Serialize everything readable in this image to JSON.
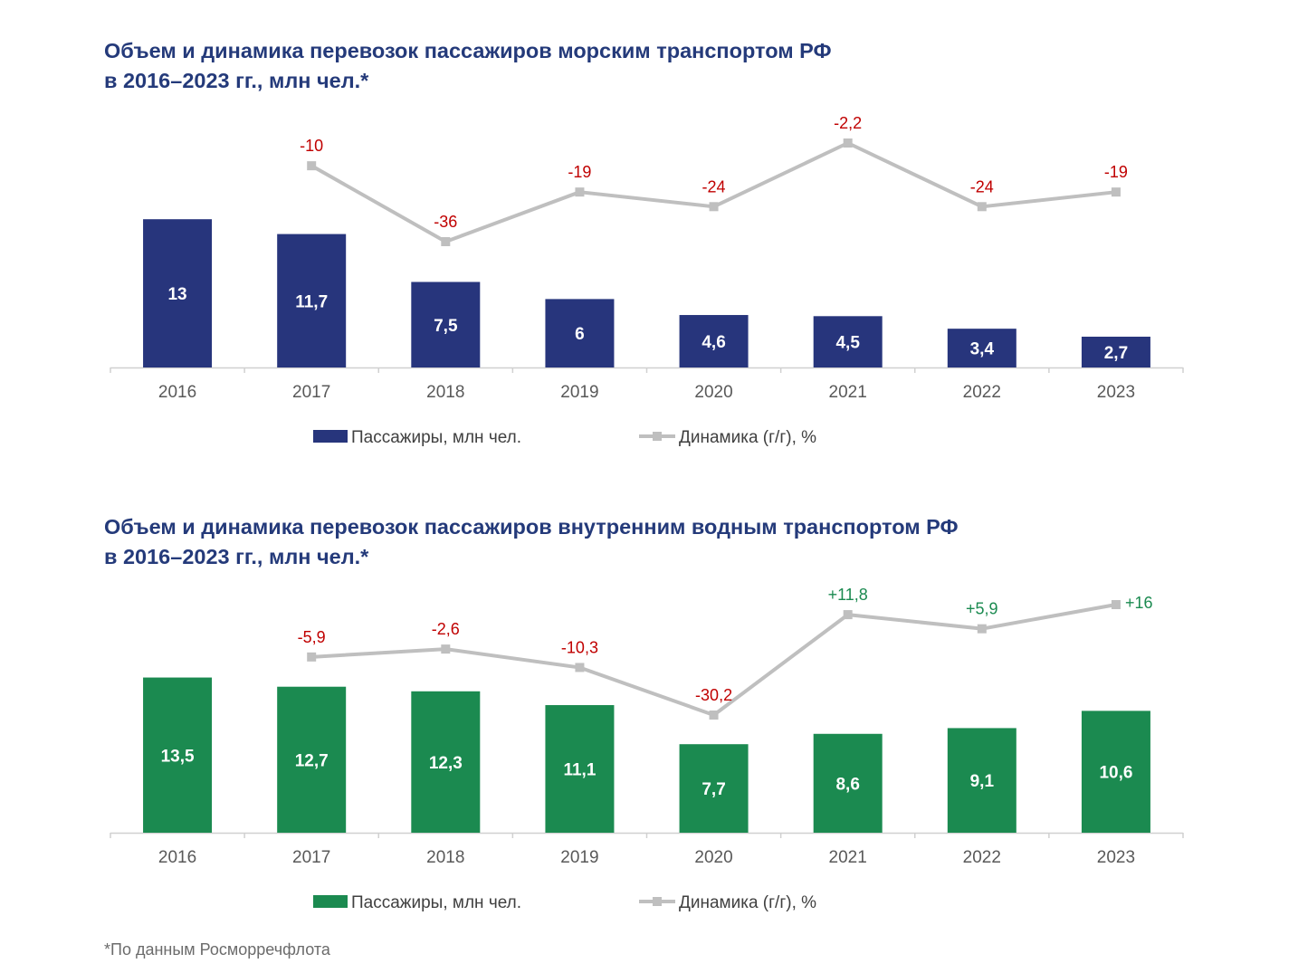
{
  "charts": [
    {
      "title_line1": "Объем и динамика перевозок пассажиров морским транспортом РФ",
      "title_line2": "в 2016–2023 гг., млн чел.*",
      "bar_color": "#27357c",
      "legend_bar_label": "Пассажиры, млн чел.",
      "legend_line_label": "Динамика (г/г), %"
    },
    {
      "title_line1": "Объем и динамика перевозок пассажиров внутренним водным транспортом РФ",
      "title_line2": "в 2016–2023 гг., млн чел.*",
      "bar_color": "#1b8a50",
      "legend_bar_label": "Пассажиры, млн чел.",
      "legend_line_label": "Динамика (г/г), %"
    }
  ],
  "footnote": "*По данным Росморречфлота",
  "colors": {
    "title": "#243a7a",
    "line": "#bfbfbf",
    "negative": "#c00000",
    "positive": "#1b8a50",
    "axis_text": "#595959"
  },
  "chart_data": [
    {
      "type": "bar+line",
      "title": "Объем и динамика перевозок пассажиров морским транспортом РФ в 2016–2023 гг., млн чел.*",
      "categories": [
        "2016",
        "2017",
        "2018",
        "2019",
        "2020",
        "2021",
        "2022",
        "2023"
      ],
      "series": [
        {
          "name": "Пассажиры, млн чел.",
          "type": "bar",
          "values": [
            13,
            11.7,
            7.5,
            6,
            4.6,
            4.5,
            3.4,
            2.7
          ],
          "labels": [
            "13",
            "11,7",
            "7,5",
            "6",
            "4,6",
            "4,5",
            "3,4",
            "2,7"
          ]
        },
        {
          "name": "Динамика (г/г), %",
          "type": "line",
          "values": [
            null,
            -10,
            -36,
            -19,
            -24,
            -2.2,
            -24,
            -19
          ],
          "labels": [
            "",
            "-10",
            "-36",
            "-19",
            "-24",
            "-2,2",
            "-24",
            "-19"
          ]
        }
      ]
    },
    {
      "type": "bar+line",
      "title": "Объем и динамика перевозок пассажиров внутренним водным транспортом РФ в 2016–2023 гг., млн чел.*",
      "categories": [
        "2016",
        "2017",
        "2018",
        "2019",
        "2020",
        "2021",
        "2022",
        "2023"
      ],
      "series": [
        {
          "name": "Пассажиры, млн чел.",
          "type": "bar",
          "values": [
            13.5,
            12.7,
            12.3,
            11.1,
            7.7,
            8.6,
            9.1,
            10.6
          ],
          "labels": [
            "13,5",
            "12,7",
            "12,3",
            "11,1",
            "7,7",
            "8,6",
            "9,1",
            "10,6"
          ]
        },
        {
          "name": "Динамика (г/г), %",
          "type": "line",
          "values": [
            null,
            -5.9,
            -2.6,
            -10.3,
            -30.2,
            11.8,
            5.9,
            16
          ],
          "labels": [
            "",
            "-5,9",
            "-2,6",
            "-10,3",
            "-30,2",
            "+11,8",
            "+5,9",
            "+16"
          ]
        }
      ]
    }
  ]
}
